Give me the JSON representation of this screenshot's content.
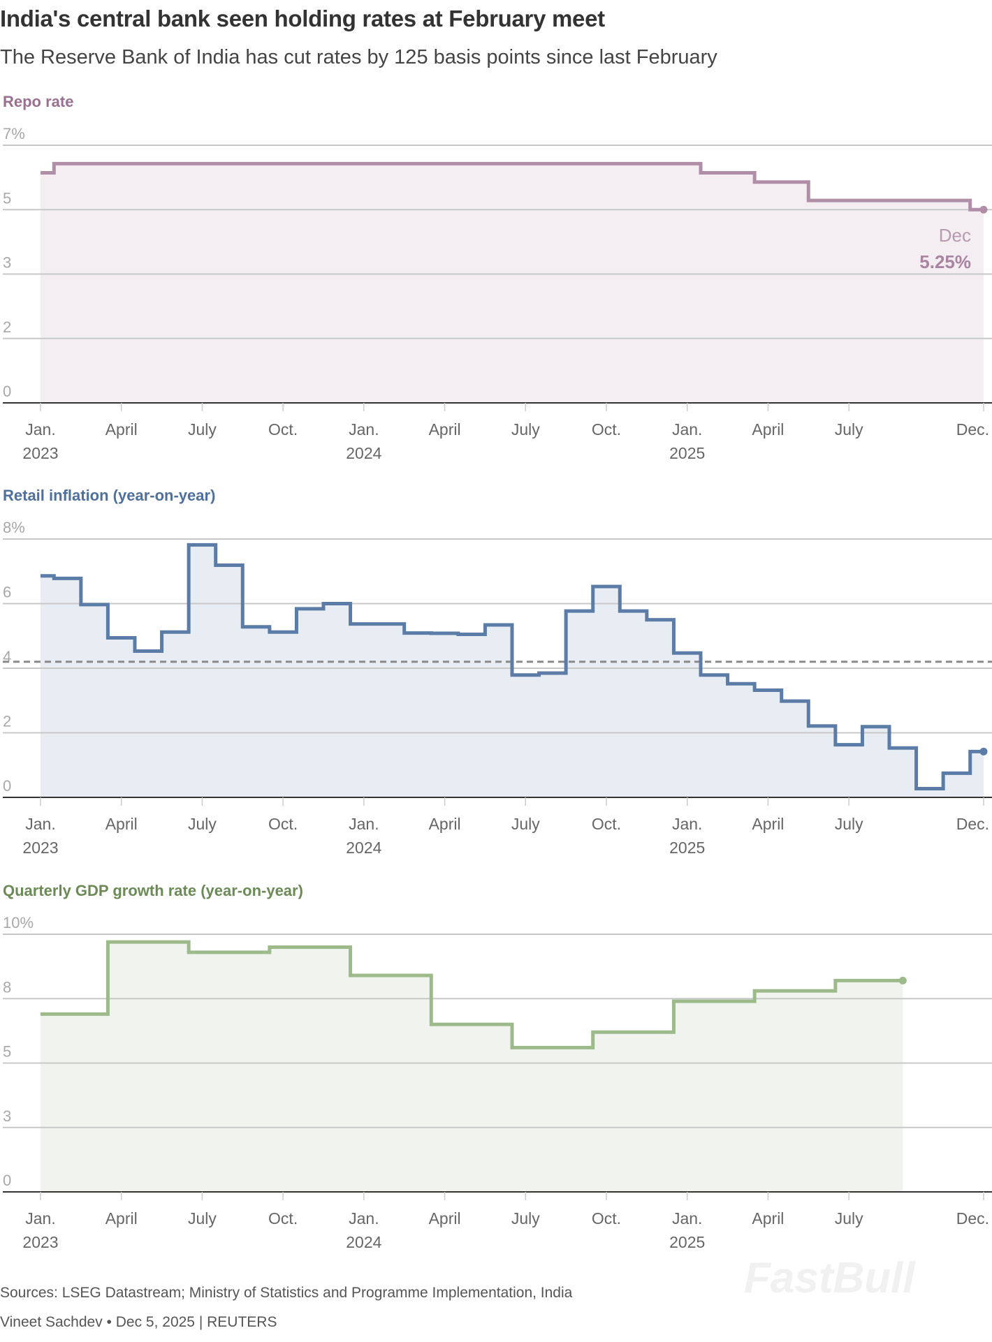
{
  "header": {
    "title": "India's central bank seen holding rates at February meet",
    "subtitle": "The Reserve Bank of India has cut rates by 125 basis points since last February"
  },
  "footer": {
    "sources": "Sources: LSEG Datastream; Ministry of Statistics and Programme Implementation, India",
    "byline": "Vineet Sachdev • Dec 5, 2025 | REUTERS",
    "watermark": "FastBull"
  },
  "chart_data": [
    {
      "type": "line",
      "id": "repo",
      "title": "Repo rate",
      "color": "#b08ea8",
      "fill": "#f4eef2",
      "title_color": "#9a7090",
      "ylim": [
        0,
        7
      ],
      "ytick_labels": [
        "0",
        "2",
        "3",
        "5",
        "7%"
      ],
      "x_unit": "months since Jan 2023",
      "monthly_values": [
        6.25,
        6.5,
        6.5,
        6.5,
        6.5,
        6.5,
        6.5,
        6.5,
        6.5,
        6.5,
        6.5,
        6.5,
        6.5,
        6.5,
        6.5,
        6.5,
        6.5,
        6.5,
        6.5,
        6.5,
        6.5,
        6.5,
        6.5,
        6.5,
        6.5,
        6.25,
        6.25,
        6.0,
        6.0,
        5.5,
        5.5,
        5.5,
        5.5,
        5.5,
        5.5,
        5.25
      ],
      "annotation": {
        "label": "Dec",
        "value": "5.25%"
      },
      "xticks": [
        {
          "m": 0,
          "label": "Jan.",
          "year": "2023"
        },
        {
          "m": 3,
          "label": "April",
          "year": ""
        },
        {
          "m": 6,
          "label": "July",
          "year": ""
        },
        {
          "m": 9,
          "label": "Oct.",
          "year": ""
        },
        {
          "m": 12,
          "label": "Jan.",
          "year": "2024"
        },
        {
          "m": 15,
          "label": "April",
          "year": ""
        },
        {
          "m": 18,
          "label": "July",
          "year": ""
        },
        {
          "m": 21,
          "label": "Oct.",
          "year": ""
        },
        {
          "m": 24,
          "label": "Jan.",
          "year": "2025"
        },
        {
          "m": 27,
          "label": "April",
          "year": ""
        },
        {
          "m": 30,
          "label": "July",
          "year": ""
        },
        {
          "m": 35,
          "label": "Dec.",
          "year": ""
        }
      ]
    },
    {
      "type": "line",
      "id": "inflation",
      "title": "Retail inflation (year-on-year)",
      "color": "#5b7ca6",
      "fill": "#e8edf4",
      "title_color": "#4f6f9c",
      "ylim": [
        0,
        8
      ],
      "ytick_labels": [
        "0",
        "2",
        "4",
        "6",
        "8%"
      ],
      "reference_line": 4.2,
      "monthly_values": [
        6.86,
        6.78,
        5.97,
        4.94,
        4.53,
        5.12,
        7.82,
        7.19,
        5.28,
        5.12,
        5.84,
        6.0,
        5.37,
        5.37,
        5.09,
        5.08,
        5.05,
        5.34,
        3.79,
        3.85,
        5.77,
        6.53,
        5.77,
        5.5,
        4.47,
        3.79,
        3.52,
        3.32,
        2.98,
        2.21,
        1.63,
        2.19,
        1.53,
        0.27,
        0.75,
        1.42
      ],
      "xticks": [
        {
          "m": 0,
          "label": "Jan.",
          "year": "2023"
        },
        {
          "m": 3,
          "label": "April",
          "year": ""
        },
        {
          "m": 6,
          "label": "July",
          "year": ""
        },
        {
          "m": 9,
          "label": "Oct.",
          "year": ""
        },
        {
          "m": 12,
          "label": "Jan.",
          "year": "2024"
        },
        {
          "m": 15,
          "label": "April",
          "year": ""
        },
        {
          "m": 18,
          "label": "July",
          "year": ""
        },
        {
          "m": 21,
          "label": "Oct.",
          "year": ""
        },
        {
          "m": 24,
          "label": "Jan.",
          "year": "2025"
        },
        {
          "m": 27,
          "label": "April",
          "year": ""
        },
        {
          "m": 30,
          "label": "July",
          "year": ""
        },
        {
          "m": 35,
          "label": "Dec.",
          "year": ""
        }
      ]
    },
    {
      "type": "line",
      "id": "gdp",
      "title": "Quarterly GDP growth rate (year-on-year)",
      "color": "#9dba8b",
      "fill": "#f1f4ee",
      "title_color": "#6b8a55",
      "ylim": [
        0,
        10
      ],
      "ytick_labels": [
        "0",
        "3",
        "5",
        "8",
        "10%"
      ],
      "step_starts": [
        0,
        2.5,
        5.5,
        8.5,
        11.5,
        14.5,
        17.5,
        20.5,
        23.5,
        26.5,
        29.5
      ],
      "step_end": 32,
      "values": [
        6.9,
        9.7,
        9.3,
        9.5,
        8.4,
        6.5,
        5.6,
        6.2,
        7.4,
        7.8,
        8.2
      ],
      "xticks": [
        {
          "m": 0,
          "label": "Jan.",
          "year": "2023"
        },
        {
          "m": 3,
          "label": "April",
          "year": ""
        },
        {
          "m": 6,
          "label": "July",
          "year": ""
        },
        {
          "m": 9,
          "label": "Oct.",
          "year": ""
        },
        {
          "m": 12,
          "label": "Jan.",
          "year": "2024"
        },
        {
          "m": 15,
          "label": "April",
          "year": ""
        },
        {
          "m": 18,
          "label": "July",
          "year": ""
        },
        {
          "m": 21,
          "label": "Oct.",
          "year": ""
        },
        {
          "m": 24,
          "label": "Jan.",
          "year": "2025"
        },
        {
          "m": 27,
          "label": "April",
          "year": ""
        },
        {
          "m": 30,
          "label": "July",
          "year": ""
        },
        {
          "m": 35,
          "label": "Dec.",
          "year": ""
        }
      ]
    }
  ]
}
